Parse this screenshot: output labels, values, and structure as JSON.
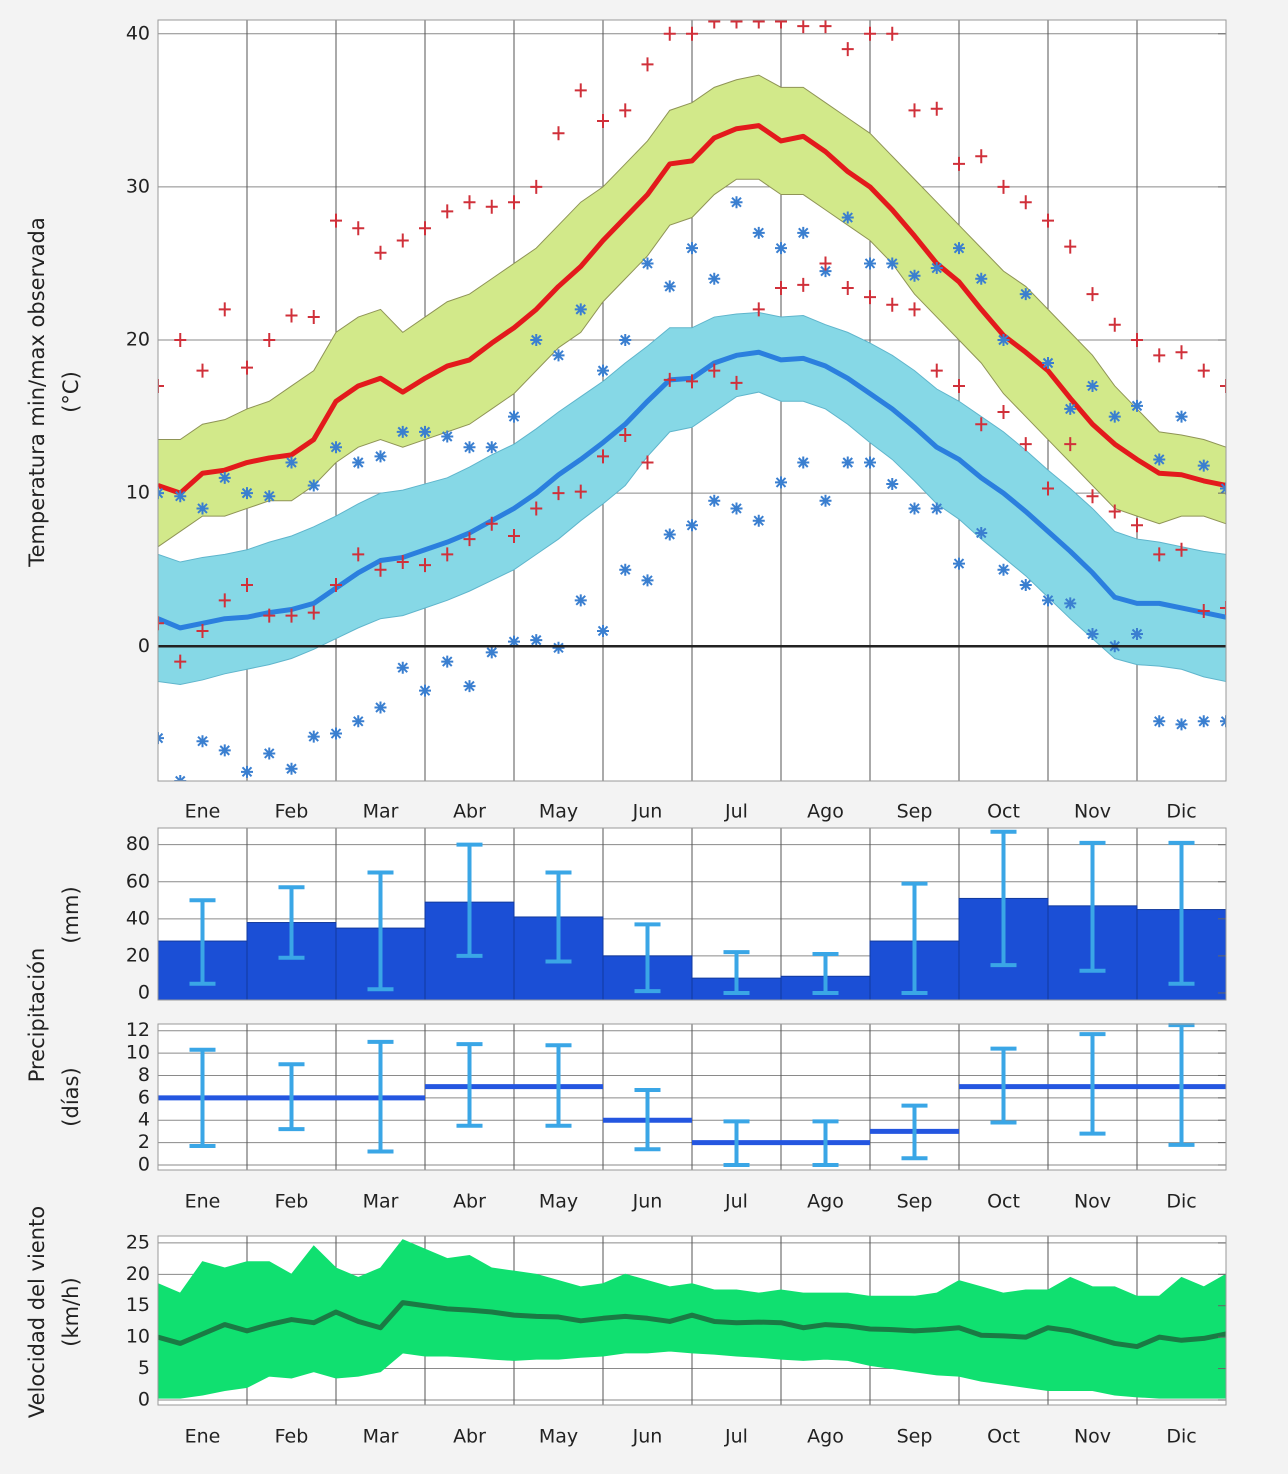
{
  "chart_data": [
    {
      "type": "line",
      "ylabel": "Temperatura min/max observada",
      "yunit": "(°C)",
      "categories": [
        "Ene",
        "Feb",
        "Mar",
        "Abr",
        "May",
        "Jun",
        "Jul",
        "Ago",
        "Sep",
        "Oct",
        "Nov",
        "Dic"
      ],
      "x": [
        0,
        0.25,
        0.5,
        0.75,
        1,
        1.25,
        1.5,
        1.75,
        2,
        2.25,
        2.5,
        2.75,
        3,
        3.25,
        3.5,
        3.75,
        4,
        4.25,
        4.5,
        4.75,
        5,
        5.25,
        5.5,
        5.75,
        6,
        6.25,
        6.5,
        6.75,
        7,
        7.25,
        7.5,
        7.75,
        8,
        8.25,
        8.5,
        8.75,
        9,
        9.25,
        9.5,
        9.75,
        10,
        10.25,
        10.5,
        10.75,
        11,
        11.25,
        11.5,
        11.75,
        12
      ],
      "xlim": [
        0,
        12
      ],
      "ylim": [
        -8.8,
        40.9
      ],
      "yticks": [
        0,
        10,
        20,
        30,
        40
      ],
      "grid": true,
      "zero_line": true,
      "bands": [
        {
          "color": "#d2e98a",
          "edge_color": "#8f9456",
          "upper": [
            13.5,
            13.5,
            14.5,
            14.8,
            15.5,
            16,
            17,
            18,
            20.5,
            21.5,
            22,
            20.5,
            21.5,
            22.5,
            23,
            24,
            25,
            26,
            27.5,
            29,
            30,
            31.5,
            33,
            35,
            35.5,
            36.5,
            37,
            37.3,
            36.5,
            36.5,
            35.5,
            34.5,
            33.5,
            32,
            30.5,
            29,
            27.5,
            26,
            24.5,
            23.5,
            22,
            20.5,
            19,
            17,
            15.5,
            14,
            13.8,
            13.5,
            13
          ],
          "lower": [
            6.5,
            7.5,
            8.5,
            8.5,
            9,
            9.5,
            9.5,
            10.5,
            12,
            13,
            13.5,
            13,
            13.5,
            14,
            14.5,
            15.5,
            16.5,
            18,
            19.5,
            20.5,
            22.5,
            24,
            25.5,
            27.5,
            28,
            29.5,
            30.5,
            30.5,
            29.5,
            29.5,
            28.5,
            27.5,
            26.5,
            25,
            23,
            21.5,
            20,
            18.5,
            16.5,
            15,
            13.5,
            12,
            10.5,
            9,
            8.5,
            8,
            8.5,
            8.5,
            8
          ]
        },
        {
          "color": "#86d8e6",
          "edge_color": "#5fb5cc",
          "upper": [
            6,
            5.5,
            5.8,
            6,
            6.3,
            6.8,
            7.2,
            7.8,
            8.5,
            9.3,
            10,
            10.2,
            10.6,
            11,
            11.7,
            12.5,
            13.2,
            14.2,
            15.3,
            16.3,
            17.3,
            18.5,
            19.6,
            20.8,
            20.8,
            21.5,
            21.7,
            21.8,
            21.5,
            21.6,
            21,
            20.5,
            19.8,
            19,
            18,
            16.8,
            16,
            15,
            14,
            12.8,
            11.5,
            10.3,
            9,
            7.5,
            7,
            6.8,
            6.5,
            6.2,
            6
          ],
          "lower": [
            -2.3,
            -2.5,
            -2.2,
            -1.8,
            -1.5,
            -1.2,
            -0.8,
            -0.2,
            0.5,
            1.2,
            1.8,
            2,
            2.5,
            3,
            3.6,
            4.3,
            5,
            6,
            7,
            8.2,
            9.3,
            10.5,
            12.4,
            14,
            14.3,
            15.3,
            16.3,
            16.6,
            16,
            16,
            15.5,
            14.5,
            13.3,
            12.2,
            10.8,
            9.3,
            8.3,
            7,
            5.8,
            4.6,
            3.2,
            1.8,
            0.5,
            -0.8,
            -1.2,
            -1.3,
            -1.5,
            -2,
            -2.3
          ]
        }
      ],
      "series": [
        {
          "color": "#e31a1c",
          "values": [
            10.5,
            10,
            11.3,
            11.5,
            12,
            12.3,
            12.5,
            13.5,
            16,
            17,
            17.5,
            16.6,
            17.5,
            18.3,
            18.7,
            19.8,
            20.8,
            22,
            23.5,
            24.8,
            26.5,
            28,
            29.5,
            31.5,
            31.7,
            33.2,
            33.8,
            34,
            33,
            33.3,
            32.3,
            31,
            30,
            28.5,
            26.8,
            25,
            23.8,
            22,
            20.3,
            19.2,
            18,
            16.2,
            14.5,
            13.2,
            12.2,
            11.3,
            11.2,
            10.8,
            10.5
          ]
        },
        {
          "color": "#2b7fde",
          "values": [
            1.8,
            1.2,
            1.5,
            1.8,
            1.9,
            2.2,
            2.4,
            2.8,
            3.8,
            4.8,
            5.6,
            5.8,
            6.3,
            6.8,
            7.4,
            8.2,
            9,
            10,
            11.2,
            12.2,
            13.3,
            14.5,
            16,
            17.4,
            17.5,
            18.5,
            19,
            19.2,
            18.7,
            18.8,
            18.3,
            17.5,
            16.5,
            15.5,
            14.3,
            13,
            12.2,
            11,
            10,
            8.8,
            7.5,
            6.2,
            4.8,
            3.2,
            2.8,
            2.8,
            2.5,
            2.2,
            1.9
          ]
        }
      ],
      "points": [
        {
          "marker": "+",
          "color": "#d0303a",
          "values": [
            17,
            20,
            18,
            22,
            18.2,
            20,
            21.6,
            21.5,
            27.8,
            27.3,
            25.7,
            26.5,
            27.3,
            28.4,
            29,
            28.7,
            29,
            30,
            33.5,
            36.3,
            34.3,
            35,
            38,
            40,
            40,
            40.8,
            40.8,
            40.8,
            40.8,
            40.5,
            40.5,
            39,
            40,
            40,
            35,
            35.1,
            31.5,
            32,
            30,
            29,
            27.8,
            26.1,
            23,
            21,
            20,
            19,
            19.2,
            18,
            17
          ]
        },
        {
          "marker": "*",
          "color": "#3a7fd0",
          "values": [
            10,
            9.8,
            9,
            11,
            10,
            9.8,
            12,
            10.5,
            13,
            12,
            12.4,
            14,
            14,
            13.7,
            13,
            13,
            15,
            20,
            19,
            22,
            18,
            20,
            25,
            23.5,
            26,
            24,
            29,
            27,
            26,
            27,
            24.5,
            28,
            25,
            25,
            24.2,
            24.7,
            26,
            24,
            20,
            23,
            18.5,
            15.5,
            17,
            15,
            15.7,
            12.2,
            15,
            11.8,
            10.3
          ]
        },
        {
          "marker": "+",
          "color": "#d0303a",
          "values": [
            1.5,
            -1,
            1,
            3,
            4,
            2,
            2,
            2.2,
            4,
            6,
            5,
            5.5,
            5.3,
            6,
            7,
            8,
            7.2,
            9,
            10,
            10.1,
            12.4,
            13.8,
            12,
            17.4,
            17.3,
            18,
            17.2,
            22,
            23.4,
            23.6,
            25,
            23.4,
            22.8,
            22.3,
            22,
            18,
            17,
            14.5,
            15.3,
            13.2,
            10.3,
            13.2,
            9.8,
            8.8,
            7.9,
            6,
            6.3,
            2.3,
            2.5
          ]
        },
        {
          "marker": "*",
          "color": "#3a7fd0",
          "values": [
            -6,
            -8.8,
            -6.2,
            -6.8,
            -8.2,
            -7,
            -8,
            -5.9,
            -5.7,
            -4.9,
            -4,
            -1.4,
            -2.9,
            -1,
            -2.6,
            -0.4,
            0.3,
            0.4,
            -0.1,
            3,
            1,
            5,
            4.3,
            7.3,
            7.9,
            9.5,
            9,
            8.2,
            10.7,
            12,
            9.5,
            12,
            12,
            10.6,
            9,
            9,
            5.4,
            7.4,
            5,
            4,
            3,
            2.8,
            0.8,
            0,
            0.8,
            -4.9,
            -5.1,
            -4.9,
            -4.9
          ]
        }
      ]
    },
    {
      "type": "bar",
      "ylabel": "Precipitación",
      "yunit": "(mm)",
      "values": [
        28,
        38,
        35,
        49,
        41,
        20,
        8,
        9,
        28,
        51,
        47,
        45
      ],
      "color": "#1b4fd6",
      "lower": [
        5,
        19,
        2,
        20,
        17,
        1,
        0,
        0,
        0,
        15,
        12,
        5
      ],
      "upper": [
        50,
        57,
        65,
        80,
        65,
        37,
        22,
        21,
        59,
        87,
        81,
        81
      ],
      "error_color": "#3aa6e6",
      "ylim": [
        -3.8,
        89
      ],
      "yticks": [
        0,
        20,
        40,
        60,
        80
      ],
      "grid": true
    },
    {
      "type": "step",
      "yunit": "(días)",
      "categories": [
        "Ene",
        "Feb",
        "Mar",
        "Abr",
        "May",
        "Jun",
        "Jul",
        "Ago",
        "Sep",
        "Oct",
        "Nov",
        "Dic"
      ],
      "values": [
        6,
        6,
        6,
        7,
        7,
        4,
        2,
        2,
        3,
        7,
        7,
        7
      ],
      "color": "#2456e0",
      "lower": [
        1.7,
        3.2,
        1.2,
        3.5,
        3.5,
        1.4,
        0,
        0,
        0.6,
        3.8,
        2.8,
        1.8
      ],
      "upper": [
        10.3,
        9,
        11,
        10.8,
        10.7,
        6.7,
        3.9,
        3.9,
        5.3,
        10.4,
        11.7,
        12.5
      ],
      "error_color": "#3aa6e6",
      "ylim": [
        -0.45,
        12.6
      ],
      "yticks": [
        0,
        2,
        4,
        6,
        8,
        10,
        12
      ],
      "grid": true
    },
    {
      "type": "line",
      "ylabel": "Velocidad del viento",
      "yunit": "(km/h)",
      "categories": [
        "Ene",
        "Feb",
        "Mar",
        "Abr",
        "May",
        "Jun",
        "Jul",
        "Ago",
        "Sep",
        "Oct",
        "Nov",
        "Dic"
      ],
      "x": [
        0,
        0.25,
        0.5,
        0.75,
        1,
        1.25,
        1.5,
        1.75,
        2,
        2.25,
        2.5,
        2.75,
        3,
        3.25,
        3.5,
        3.75,
        4,
        4.25,
        4.5,
        4.75,
        5,
        5.25,
        5.5,
        5.75,
        6,
        6.25,
        6.5,
        6.75,
        7,
        7.25,
        7.5,
        7.75,
        8,
        8.25,
        8.5,
        8.75,
        9,
        9.25,
        9.5,
        9.75,
        10,
        10.25,
        10.5,
        10.75,
        11,
        11.25,
        11.5,
        11.75,
        12
      ],
      "xlim": [
        0,
        12
      ],
      "ylim": [
        -0.8,
        26.1
      ],
      "yticks": [
        0,
        5,
        10,
        15,
        20,
        25
      ],
      "grid": true,
      "bands": [
        {
          "color": "#10e070",
          "edge_color": "#10e070",
          "upper": [
            18.5,
            17,
            22,
            21,
            22,
            22,
            20,
            24.5,
            21,
            19.5,
            21,
            25.5,
            24,
            22.5,
            23,
            21,
            20.5,
            20,
            19,
            18,
            18.5,
            20,
            19,
            18,
            18.5,
            17.5,
            17.5,
            17,
            17.5,
            17,
            17,
            17,
            16.5,
            16.5,
            16.5,
            17,
            19,
            18,
            17,
            17.5,
            17.5,
            19.5,
            18,
            18,
            16.5,
            16.5,
            19.5,
            18,
            20
          ],
          "lower": [
            0.3,
            0.3,
            0.8,
            1.5,
            2,
            3.8,
            3.5,
            4.5,
            3.5,
            3.8,
            4.5,
            7.5,
            7,
            7,
            6.8,
            6.5,
            6.3,
            6.5,
            6.5,
            6.8,
            7,
            7.5,
            7.5,
            7.8,
            7.5,
            7.3,
            7,
            6.8,
            6.5,
            6.3,
            6.5,
            6.3,
            5.5,
            5,
            4.5,
            4,
            3.8,
            3,
            2.5,
            2,
            1.5,
            1.5,
            1.5,
            0.8,
            0.5,
            0.3,
            0.3,
            0.3,
            0.3
          ]
        }
      ],
      "series": [
        {
          "color": "#1a7a44",
          "values": [
            10,
            9,
            10.5,
            12,
            11,
            12,
            12.8,
            12.3,
            14,
            12.5,
            11.5,
            15.5,
            15,
            14.5,
            14.3,
            14,
            13.5,
            13.3,
            13.2,
            12.6,
            13,
            13.3,
            13,
            12.5,
            13.5,
            12.5,
            12.3,
            12.4,
            12.3,
            11.5,
            12,
            11.8,
            11.3,
            11.2,
            11,
            11.2,
            11.5,
            10.3,
            10.2,
            10,
            11.5,
            11,
            10,
            9,
            8.5,
            10,
            9.5,
            9.8,
            10.5
          ]
        }
      ]
    }
  ]
}
